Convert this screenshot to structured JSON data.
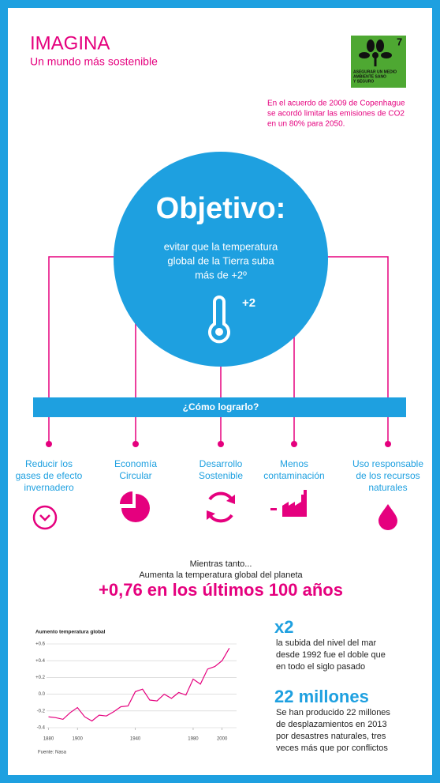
{
  "header": {
    "title": "IMAGINA",
    "subtitle": "Un mundo más sostenible"
  },
  "badge": {
    "number": "7",
    "text": [
      "ASEGURAR UN MEDIO",
      "AMBIENTE SANO",
      "Y SEGURO"
    ]
  },
  "note": [
    "En el acuerdo de 2009  de Copenhague",
    "se acordó limitar las emisiones de CO2",
    "en un 80% para 2050."
  ],
  "objective": {
    "title": "Objetivo:",
    "lines": [
      "evitar que la temperatura",
      "global de la Tierra suba",
      "más de +2º"
    ],
    "icon_label": "+2"
  },
  "how": {
    "title": "¿Cómo lograrlo?",
    "items": [
      {
        "lines": [
          "Reducir los",
          "gases de efecto",
          "invernadero"
        ]
      },
      {
        "lines": [
          "Economía",
          "Circular"
        ]
      },
      {
        "lines": [
          "Desarrollo",
          "Sostenible"
        ]
      },
      {
        "lines": [
          "Menos",
          "contaminación"
        ]
      },
      {
        "lines": [
          "Uso responsable",
          "de los recursos",
          "naturales"
        ]
      }
    ]
  },
  "meanwhile": {
    "lines": [
      "Mientras tanto...",
      "Aumenta la temperatura global del planeta"
    ],
    "headline": "+0,76 en los últimos 100 años"
  },
  "chart_data": {
    "type": "line",
    "title": "Aumento temperatura global",
    "x": [
      1880,
      1885,
      1890,
      1895,
      1900,
      1905,
      1910,
      1915,
      1920,
      1925,
      1930,
      1935,
      1940,
      1945,
      1950,
      1955,
      1960,
      1965,
      1970,
      1975,
      1980,
      1985,
      1990,
      1995,
      2000,
      2005
    ],
    "values": [
      -0.27,
      -0.28,
      -0.3,
      -0.22,
      -0.16,
      -0.27,
      -0.32,
      -0.25,
      -0.26,
      -0.21,
      -0.15,
      -0.14,
      0.03,
      0.06,
      -0.07,
      -0.08,
      0.0,
      -0.05,
      0.02,
      -0.01,
      0.18,
      0.12,
      0.3,
      0.33,
      0.4,
      0.55
    ],
    "color": "#e5007e",
    "xlim": [
      1871,
      2010
    ],
    "xticks": [
      1880,
      1900,
      1940,
      1980,
      2000
    ],
    "ylim": [
      -0.4,
      0.6
    ],
    "yticks": [
      {
        "value": 0.6,
        "label": "+0.6"
      },
      {
        "value": 0.4,
        "label": "+0.4"
      },
      {
        "value": 0.2,
        "label": "+0.2"
      },
      {
        "value": 0,
        "label": "0.0"
      },
      {
        "value": -0.2,
        "label": "-0.2"
      },
      {
        "value": -0.4,
        "label": "-0.4"
      }
    ],
    "grid": true,
    "source": "Fuente: Nasa"
  },
  "facts": [
    {
      "title": "x2",
      "lines": [
        "la subida del nivel del mar",
        "desde 1992 fue el doble que",
        "en todo el siglo pasado"
      ]
    },
    {
      "title": "22 millones",
      "lines": [
        "Se han producido 22 millones",
        "de desplazamientos en 2013",
        "por desastres naturales, tres",
        "veces más que por conflictos"
      ]
    }
  ]
}
